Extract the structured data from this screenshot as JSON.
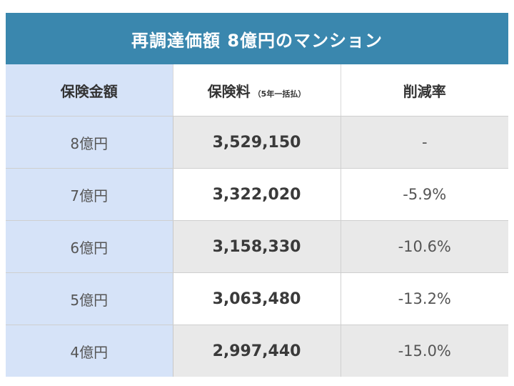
{
  "title": "再調達価額 8億円のマンション",
  "headers": {
    "amount": "保険金額",
    "premium": "保険料",
    "premium_note": "（5年一括払）",
    "rate": "削減率"
  },
  "rows": [
    {
      "amount": "8億円",
      "premium": "3,529,150",
      "rate": "-"
    },
    {
      "amount": "7億円",
      "premium": "3,322,020",
      "rate": "-5.9%"
    },
    {
      "amount": "6億円",
      "premium": "3,158,330",
      "rate": "-10.6%"
    },
    {
      "amount": "5億円",
      "premium": "3,063,480",
      "rate": "-13.2%"
    },
    {
      "amount": "4億円",
      "premium": "2,997,440",
      "rate": "-15.0%"
    }
  ],
  "colors": {
    "title_background": "#3a87ae",
    "amount_column_background": "#d6e3f8",
    "shaded_row_background": "#e9e9e9"
  }
}
